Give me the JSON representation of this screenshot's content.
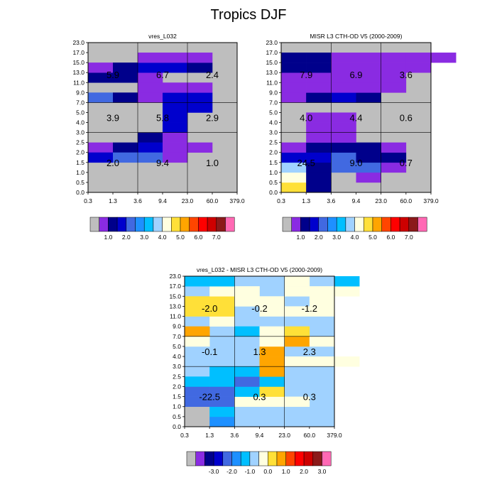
{
  "title": "Tropics DJF",
  "chart_data": [
    {
      "type": "heatmap",
      "title": "vres_L032",
      "x_ticks": [
        "0.3",
        "1.3",
        "3.6",
        "9.4",
        "23.0",
        "60.0",
        "379.0"
      ],
      "y_ticks": [
        "0.0",
        "0.5",
        "1.0",
        "1.5",
        "2.0",
        "2.5",
        "3.0",
        "4.0",
        "5.0",
        "7.0",
        "9.0",
        "11.0",
        "13.0",
        "15.0",
        "17.0",
        "23.0"
      ],
      "legend_ticks": [
        "1.0",
        "2.0",
        "3.0",
        "4.0",
        "5.0",
        "6.0",
        "7.0"
      ],
      "colorbar": [
        "#bebebe",
        "#8a2be2",
        "#00008b",
        "#0000cd",
        "#4169e1",
        "#1e90ff",
        "#00bfff",
        "#a0d2ff",
        "#ffffe0",
        "#ffe038",
        "#ffa500",
        "#ff4500",
        "#ff0000",
        "#cd0000",
        "#8b1a1a",
        "#ff69b4"
      ],
      "cells": [
        [
          5,
          2,
          2
        ],
        [
          5,
          3,
          1
        ],
        [
          4,
          0,
          1
        ],
        [
          4,
          1,
          2
        ],
        [
          4,
          2,
          3
        ],
        [
          4,
          3,
          1
        ],
        [
          4,
          4,
          1
        ],
        [
          3,
          0,
          3
        ],
        [
          3,
          1,
          4
        ],
        [
          3,
          2,
          4
        ],
        [
          3,
          3,
          1
        ],
        [
          9,
          0,
          4
        ],
        [
          9,
          1,
          2
        ],
        [
          9,
          2,
          1
        ],
        [
          9,
          3,
          3
        ],
        [
          9,
          4,
          3
        ],
        [
          8,
          3,
          3
        ],
        [
          8,
          4,
          3
        ],
        [
          7,
          3,
          3
        ],
        [
          6,
          3,
          3
        ],
        [
          10,
          2,
          1
        ],
        [
          10,
          3,
          1
        ],
        [
          10,
          4,
          1
        ],
        [
          11,
          0,
          2
        ],
        [
          11,
          1,
          2
        ],
        [
          11,
          2,
          1
        ],
        [
          12,
          0,
          1
        ],
        [
          12,
          1,
          2
        ],
        [
          12,
          2,
          3
        ],
        [
          12,
          3,
          3
        ],
        [
          12,
          4,
          2
        ],
        [
          13,
          2,
          1
        ],
        [
          13,
          3,
          1
        ],
        [
          13,
          4,
          1
        ]
      ],
      "values": [
        [
          "2.0",
          "9.4",
          "1.0"
        ],
        [
          "3.9",
          "5.8",
          "2.9"
        ],
        [
          "5.9",
          "6.7",
          "2.4"
        ]
      ]
    },
    {
      "type": "heatmap",
      "title": "MISR L3 CTH-OD V5 (2000-2009)",
      "x_ticks": [
        "0.3",
        "1.3",
        "3.6",
        "9.4",
        "23.0",
        "60.0",
        "379.0"
      ],
      "y_ticks": [
        "0.0",
        "0.5",
        "1.0",
        "1.5",
        "2.0",
        "2.5",
        "3.0",
        "4.0",
        "5.0",
        "7.0",
        "9.0",
        "11.0",
        "13.0",
        "15.0",
        "17.0",
        "23.0"
      ],
      "legend_ticks": [
        "1.0",
        "2.0",
        "3.0",
        "4.0",
        "5.0",
        "6.0",
        "7.0"
      ],
      "colorbar": [
        "#bebebe",
        "#8a2be2",
        "#00008b",
        "#0000cd",
        "#4169e1",
        "#1e90ff",
        "#00bfff",
        "#a0d2ff",
        "#ffffe0",
        "#ffe038",
        "#ffa500",
        "#ff4500",
        "#ff0000",
        "#cd0000",
        "#8b1a1a",
        "#ff69b4"
      ],
      "cells": [
        [
          0,
          0,
          9
        ],
        [
          0,
          1,
          2
        ],
        [
          1,
          0,
          8
        ],
        [
          1,
          1,
          2
        ],
        [
          1,
          3,
          1
        ],
        [
          2,
          0,
          7
        ],
        [
          2,
          1,
          2
        ],
        [
          2,
          2,
          4
        ],
        [
          2,
          3,
          4
        ],
        [
          2,
          4,
          1
        ],
        [
          3,
          0,
          3
        ],
        [
          3,
          1,
          3
        ],
        [
          3,
          2,
          4
        ],
        [
          3,
          3,
          2
        ],
        [
          3,
          4,
          2
        ],
        [
          4,
          0,
          1
        ],
        [
          4,
          1,
          2
        ],
        [
          4,
          2,
          2
        ],
        [
          4,
          3,
          2
        ],
        [
          4,
          4,
          1
        ],
        [
          5,
          1,
          1
        ],
        [
          5,
          2,
          1
        ],
        [
          6,
          1,
          1
        ],
        [
          6,
          2,
          1
        ],
        [
          7,
          1,
          1
        ],
        [
          7,
          2,
          1
        ],
        [
          9,
          0,
          1
        ],
        [
          9,
          1,
          2
        ],
        [
          9,
          2,
          3
        ],
        [
          9,
          3,
          2
        ],
        [
          10,
          0,
          1
        ],
        [
          10,
          1,
          1
        ],
        [
          10,
          2,
          1
        ],
        [
          10,
          3,
          1
        ],
        [
          10,
          4,
          1
        ],
        [
          11,
          0,
          1
        ],
        [
          11,
          1,
          1
        ],
        [
          11,
          2,
          1
        ],
        [
          11,
          3,
          1
        ],
        [
          11,
          4,
          1
        ],
        [
          12,
          0,
          2
        ],
        [
          12,
          1,
          2
        ],
        [
          12,
          2,
          1
        ],
        [
          12,
          3,
          1
        ],
        [
          12,
          4,
          1
        ],
        [
          12,
          5,
          1
        ],
        [
          13,
          0,
          2
        ],
        [
          13,
          1,
          2
        ],
        [
          13,
          2,
          1
        ],
        [
          13,
          3,
          1
        ],
        [
          13,
          4,
          1
        ],
        [
          13,
          5,
          1
        ],
        [
          13,
          6,
          1
        ]
      ],
      "values": [
        [
          "24.5",
          "9.0",
          "0.7"
        ],
        [
          "4.0",
          "4.4",
          "0.6"
        ],
        [
          "7.9",
          "6.9",
          "3.6"
        ]
      ]
    },
    {
      "type": "heatmap",
      "title": "vres_L032 - MISR L3 CTH-OD V5 (2000-2009)",
      "x_ticks": [
        "0.3",
        "1.3",
        "3.6",
        "9.4",
        "23.0",
        "60.0",
        "379.0"
      ],
      "y_ticks": [
        "0.0",
        "0.5",
        "1.0",
        "1.5",
        "2.0",
        "2.5",
        "3.0",
        "4.0",
        "5.0",
        "7.0",
        "9.0",
        "11.0",
        "13.0",
        "15.0",
        "17.0",
        "23.0"
      ],
      "legend_ticks": [
        "-3.0",
        "-2.0",
        "-1.0",
        "0.0",
        "1.0",
        "2.0",
        "3.0"
      ],
      "colorbar": [
        "#bebebe",
        "#8a2be2",
        "#00008b",
        "#0000cd",
        "#4169e1",
        "#1e90ff",
        "#00bfff",
        "#a0d2ff",
        "#ffffe0",
        "#ffe038",
        "#ffa500",
        "#ff4500",
        "#ff0000",
        "#cd0000",
        "#8b1a1a",
        "#ff69b4"
      ],
      "default_fill": "#a0d2ff",
      "cells": [
        [
          0,
          0,
          0
        ],
        [
          0,
          1,
          5
        ],
        [
          1,
          0,
          0
        ],
        [
          1,
          1,
          6
        ],
        [
          2,
          0,
          4
        ],
        [
          2,
          1,
          4
        ],
        [
          2,
          2,
          8
        ],
        [
          2,
          3,
          8
        ],
        [
          2,
          4,
          8
        ],
        [
          3,
          0,
          4
        ],
        [
          3,
          1,
          4
        ],
        [
          3,
          2,
          6
        ],
        [
          3,
          3,
          9
        ],
        [
          4,
          0,
          6
        ],
        [
          4,
          1,
          6
        ],
        [
          4,
          2,
          4
        ],
        [
          4,
          3,
          6
        ],
        [
          5,
          1,
          6
        ],
        [
          5,
          2,
          6
        ],
        [
          5,
          3,
          10
        ],
        [
          6,
          3,
          10
        ],
        [
          6,
          4,
          8
        ],
        [
          6,
          5,
          8
        ],
        [
          6,
          6,
          8
        ],
        [
          7,
          3,
          10
        ],
        [
          8,
          0,
          8
        ],
        [
          8,
          3,
          8
        ],
        [
          8,
          4,
          10
        ],
        [
          8,
          5,
          8
        ],
        [
          9,
          0,
          10
        ],
        [
          9,
          2,
          6
        ],
        [
          9,
          3,
          8
        ],
        [
          9,
          4,
          9
        ],
        [
          10,
          1,
          8
        ],
        [
          11,
          0,
          9
        ],
        [
          11,
          1,
          9
        ],
        [
          11,
          3,
          8
        ],
        [
          11,
          4,
          8
        ],
        [
          11,
          5,
          8
        ],
        [
          12,
          0,
          9
        ],
        [
          12,
          1,
          9
        ],
        [
          12,
          2,
          8
        ],
        [
          12,
          3,
          8
        ],
        [
          12,
          5,
          8
        ],
        [
          13,
          1,
          8
        ],
        [
          13,
          2,
          8
        ],
        [
          13,
          4,
          8
        ],
        [
          13,
          5,
          8
        ],
        [
          13,
          6,
          8
        ],
        [
          14,
          0,
          6
        ],
        [
          14,
          1,
          6
        ],
        [
          14,
          4,
          8
        ],
        [
          14,
          6,
          6
        ]
      ],
      "values": [
        [
          "-22.5",
          "0.3",
          "0.3"
        ],
        [
          "-0.1",
          "1.3",
          "2.3"
        ],
        [
          "-2.0",
          "-0.2",
          "-1.2"
        ]
      ]
    }
  ]
}
